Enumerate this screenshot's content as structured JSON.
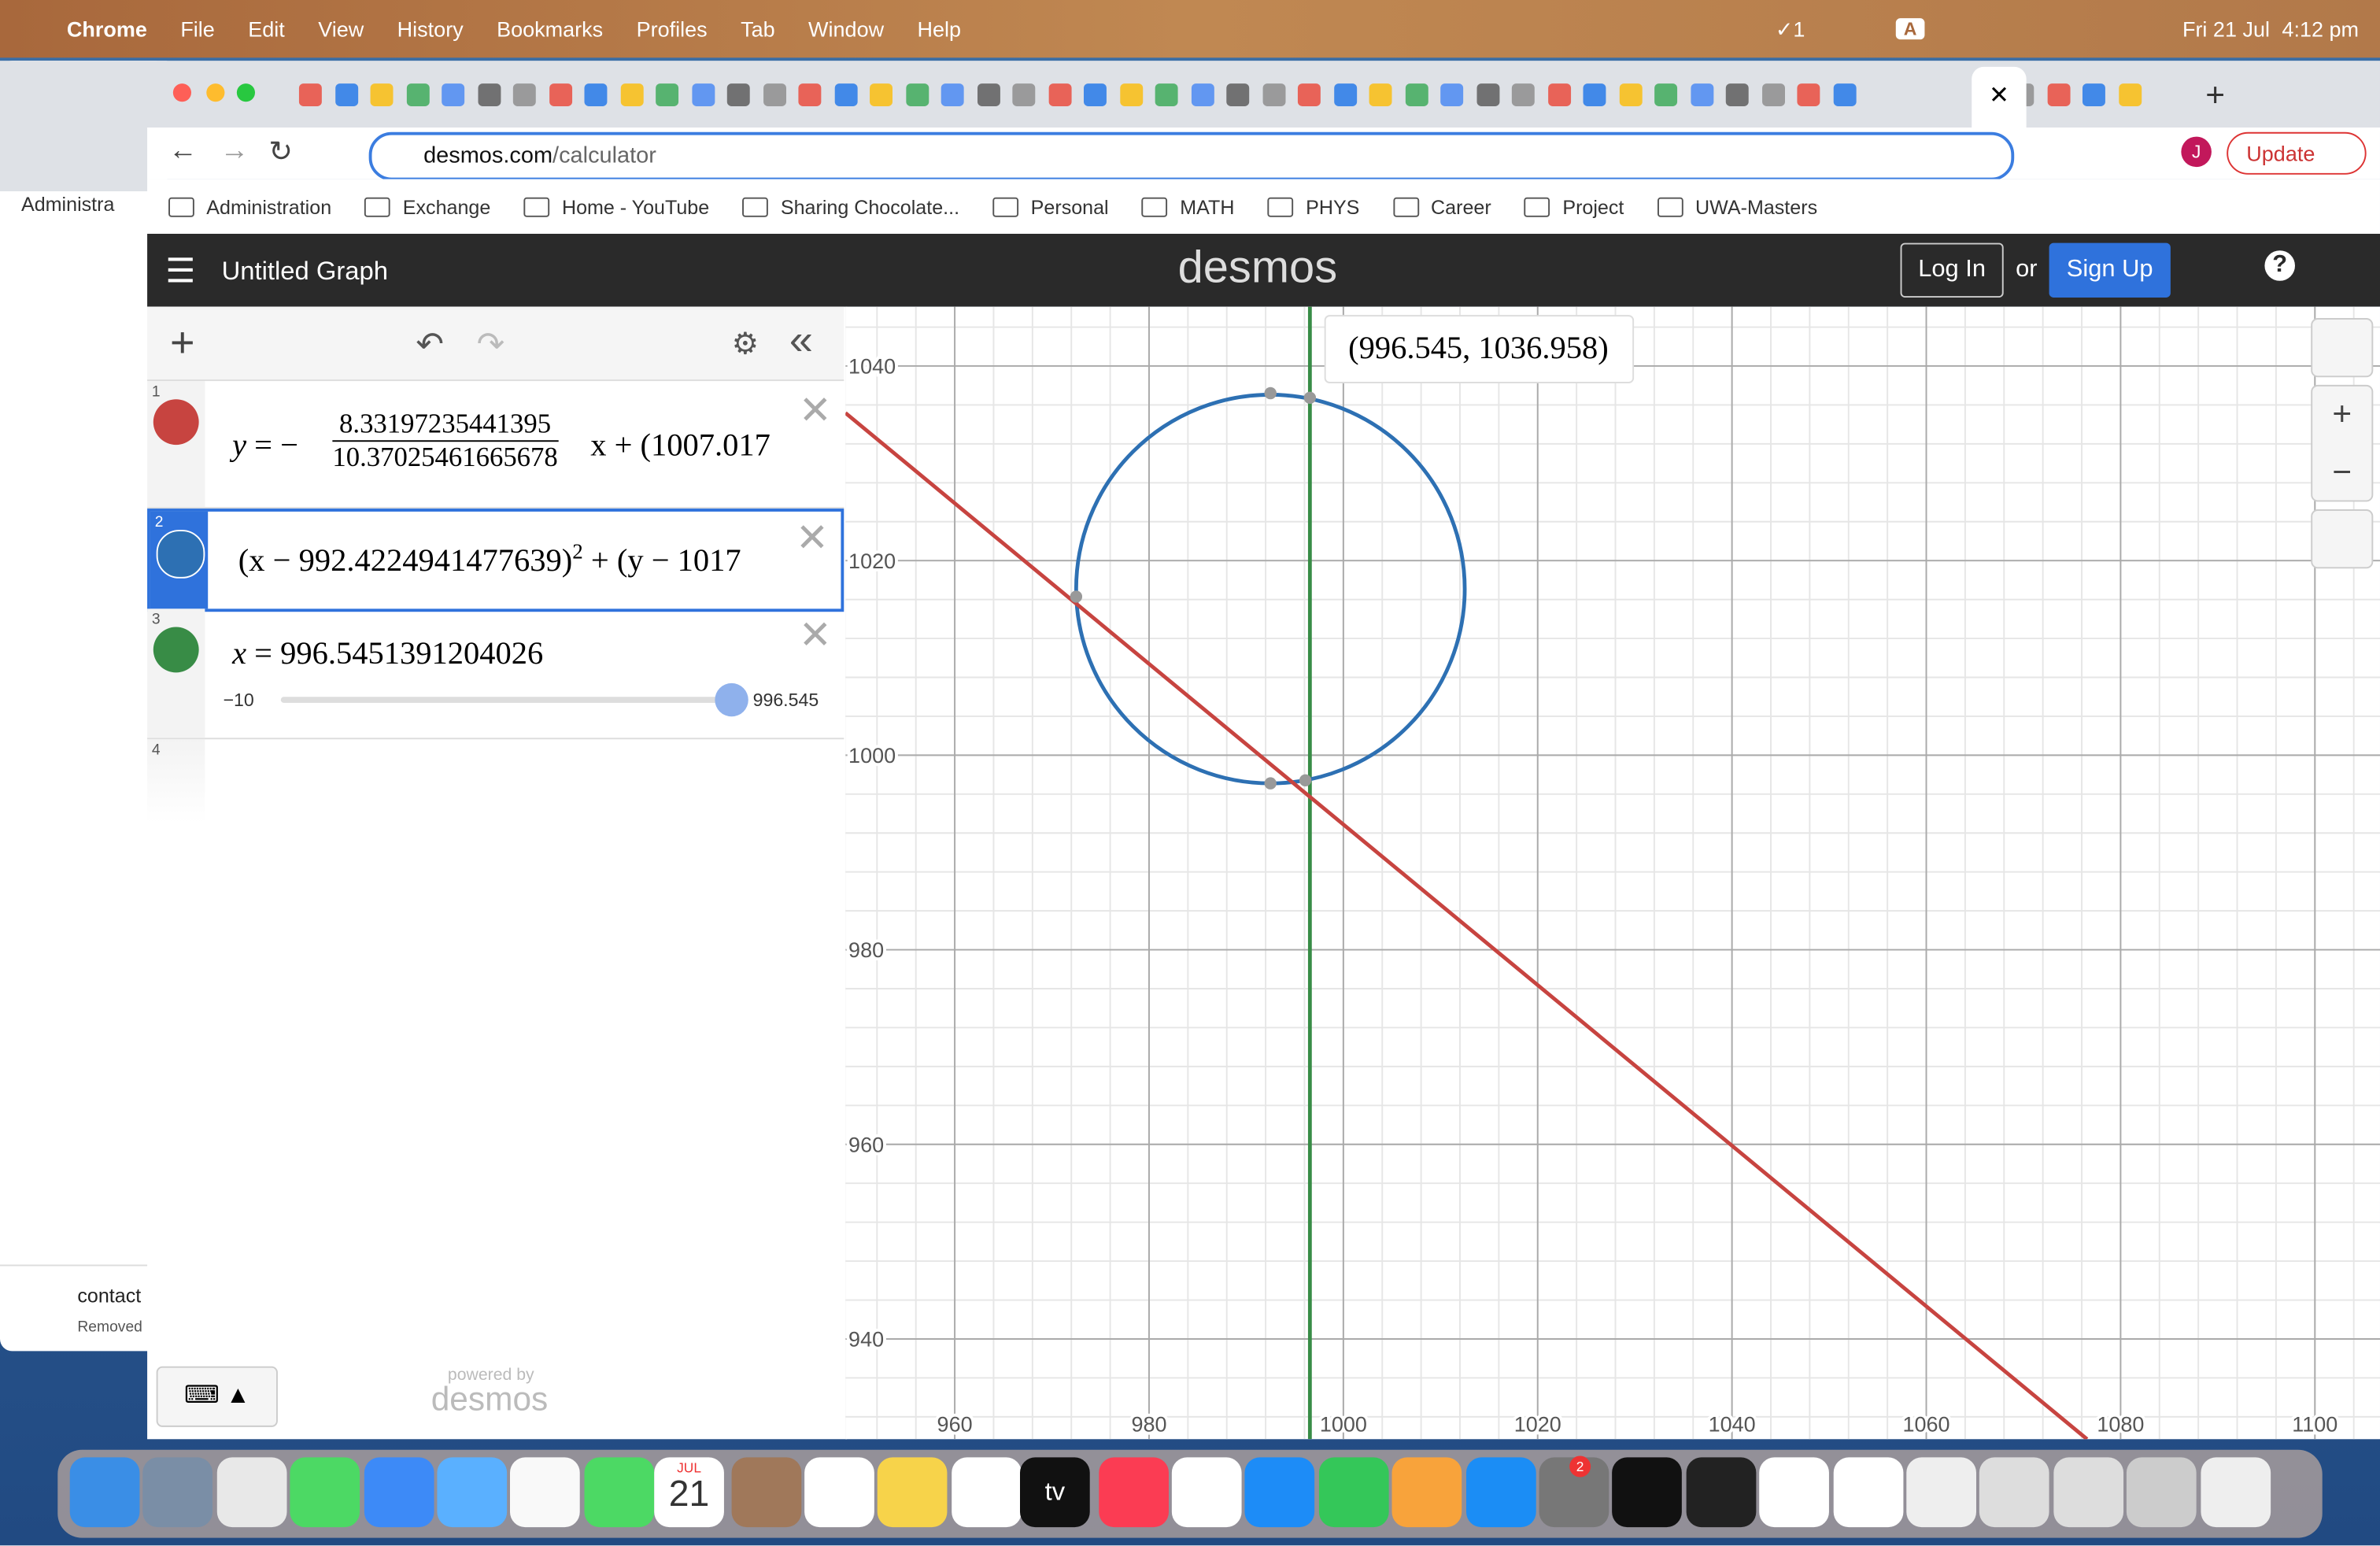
{
  "menu_bar": {
    "app": "Chrome",
    "items": [
      "File",
      "Edit",
      "View",
      "History",
      "Bookmarks",
      "Profiles",
      "Tab",
      "Window",
      "Help"
    ],
    "status": {
      "checks": "1",
      "input": "A",
      "date": "Fri 21 Jul",
      "time": "4:12 pm"
    }
  },
  "browser": {
    "url_host": "desmos.com",
    "url_path": "/calculator",
    "update": "Update",
    "profile": "J",
    "bookmarks": [
      "Administration",
      "Exchange",
      "Home - YouTube",
      "Sharing Chocolate...",
      "Personal",
      "MATH",
      "PHYS",
      "Career",
      "Project",
      "UWA-Masters"
    ]
  },
  "background_window": {
    "bookmark": "Administra",
    "download_name": "contact",
    "download_status": "Removed"
  },
  "desmos": {
    "title": "Untitled Graph",
    "logo": "desmos",
    "login": "Log In",
    "or": "or",
    "signup": "Sign Up",
    "expressions": [
      {
        "index": "1",
        "lhs": "y",
        "eq": "=",
        "minus": "−",
        "numerator": "8.33197235441395",
        "denominator": "10.37025461665678",
        "rest": "x + (1007.017"
      },
      {
        "index": "2",
        "base": "(x − 992.4224941477639)",
        "exponent": "2",
        "rest": "+ (y − 1017"
      },
      {
        "index": "3",
        "lhs": "x",
        "eq": "=",
        "value": "996.5451391204026",
        "slider_min": "−10",
        "slider_value": "996.545"
      },
      {
        "index": "4"
      }
    ],
    "powered_by": "powered by",
    "footer_logo": "desmos",
    "graph": {
      "xlim": [
        948.75,
        1106.7
      ],
      "ylim": [
        929.7,
        1046.1
      ],
      "xticks": [
        960,
        980,
        1000,
        1020,
        1040,
        1060,
        1080,
        1100
      ],
      "yticks": [
        940,
        960,
        980,
        1000,
        1020,
        1040
      ],
      "point_label": "(996.545, 1036.958)"
    }
  },
  "dock": {
    "calendar_month": "JUL",
    "calendar_day": "21",
    "tv": "tv",
    "settings_badge": "2"
  }
}
